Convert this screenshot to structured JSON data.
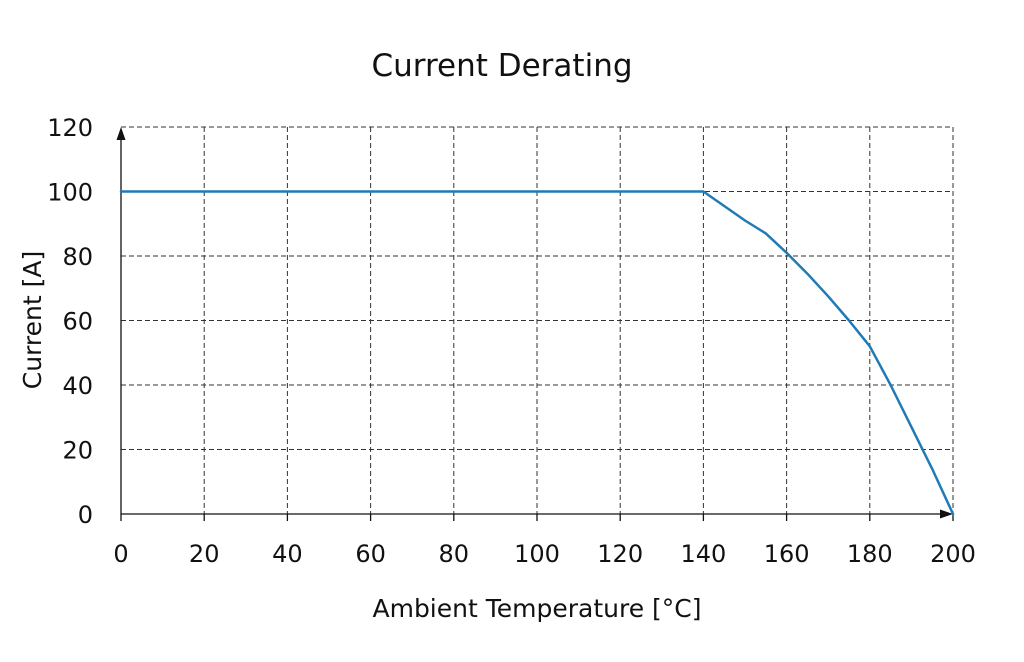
{
  "chart_data": {
    "type": "line",
    "title": "Current Derating",
    "xlabel": "Ambient Temperature [°C]",
    "ylabel": "Current [A]",
    "xlim": [
      0,
      200
    ],
    "ylim": [
      0,
      120
    ],
    "x_ticks": [
      0,
      20,
      40,
      60,
      80,
      100,
      120,
      140,
      160,
      180,
      200
    ],
    "y_ticks": [
      0,
      20,
      40,
      60,
      80,
      100,
      120
    ],
    "grid": true,
    "series": [
      {
        "color": "#1f7bb6",
        "x": [
          0,
          140,
          145,
          150,
          155,
          160,
          165,
          170,
          175,
          180,
          185,
          190,
          195,
          200
        ],
        "y": [
          100,
          100,
          95.5,
          91,
          87,
          81,
          74.5,
          67.5,
          60,
          52,
          40,
          27,
          14,
          0
        ]
      }
    ]
  }
}
